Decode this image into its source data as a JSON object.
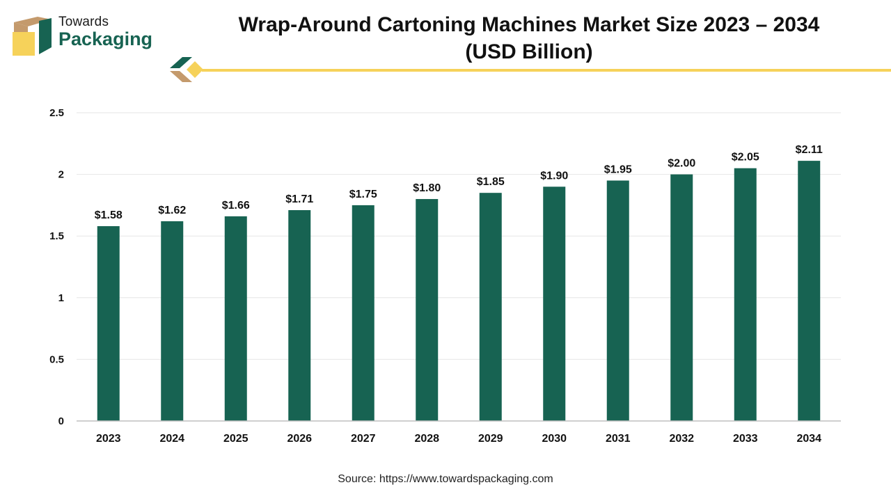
{
  "brand": {
    "line1": "Towards",
    "line2": "Packaging",
    "colors": {
      "green": "#176352",
      "tan": "#c49a6c",
      "yellow": "#f6d25a"
    }
  },
  "title": {
    "line1": "Wrap-Around Cartoning Machines Market Size 2023 – 2034",
    "line2": "(USD Billion)"
  },
  "source": "Source: https://www.towardspackaging.com",
  "chart_data": {
    "type": "bar",
    "categories": [
      "2023",
      "2024",
      "2025",
      "2026",
      "2027",
      "2028",
      "2029",
      "2030",
      "2031",
      "2032",
      "2033",
      "2034"
    ],
    "values": [
      1.58,
      1.62,
      1.66,
      1.71,
      1.75,
      1.8,
      1.85,
      1.9,
      1.95,
      2.0,
      2.05,
      2.11
    ],
    "labels": [
      "$1.58",
      "$1.62",
      "$1.66",
      "$1.71",
      "$1.75",
      "$1.80",
      "$1.85",
      "$1.90",
      "$1.95",
      "$2.00",
      "$2.05",
      "$2.11"
    ],
    "y_ticks": [
      "0",
      "0.5",
      "1",
      "1.5",
      "2",
      "2.5"
    ],
    "ylim": [
      0,
      2.5
    ],
    "grid": true,
    "bar_color": "#176352",
    "gridline_color": "#e6e6e6"
  }
}
